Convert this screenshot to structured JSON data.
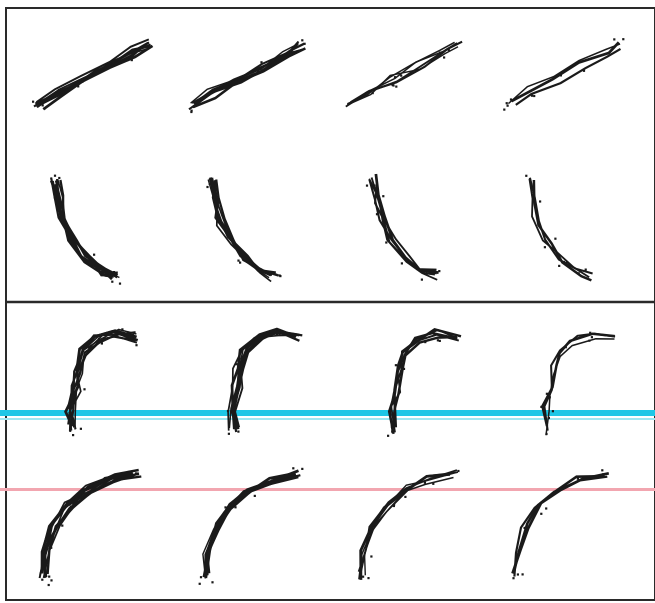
{
  "colors": {
    "background": "#ffffff",
    "border": "#2a2a2a",
    "stroke": "#1a1a1a",
    "scan_cyan": "#1fc6e6",
    "scan_cyan_light": "#9fe6f2",
    "scan_pink": "#f2a6b0"
  },
  "panels": [
    {
      "name": "top-panel",
      "rows": [
        {
          "name": "straight-diagonal-strokes",
          "shape": "diagonal",
          "count": 4
        },
        {
          "name": "curved-strokes",
          "shape": "crescent",
          "count": 4
        }
      ]
    },
    {
      "name": "bottom-panel",
      "rows": [
        {
          "name": "hooked-strokes",
          "shape": "hook",
          "count": 4
        },
        {
          "name": "arc-strokes",
          "shape": "arc",
          "count": 4
        }
      ]
    }
  ]
}
